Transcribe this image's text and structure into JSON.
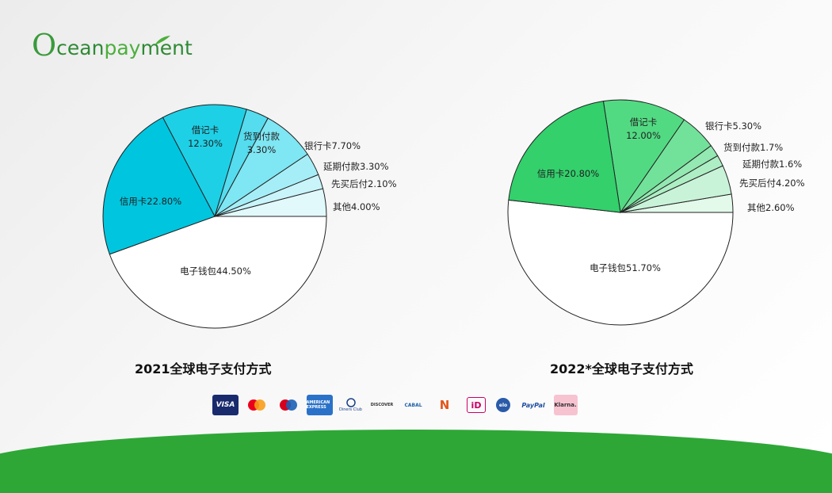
{
  "brand": {
    "logo_o": "O",
    "logo_part1": "cean",
    "logo_part2": "pay",
    "logo_part3": "ment"
  },
  "chart_data": [
    {
      "type": "pie",
      "title": "2021全球电子支付方式",
      "slices": [
        {
          "label": "电子钱包44.50%",
          "value": 44.5,
          "color": "#ffffff"
        },
        {
          "label": "信用卡22.80%",
          "value": 22.8,
          "color": "#00c5df"
        },
        {
          "label": "借记卡",
          "label2": "12.30%",
          "value": 12.3,
          "color": "#1ed0e6"
        },
        {
          "label": "货到付款",
          "label2": "3.30%",
          "value": 3.3,
          "color": "#55dcee"
        },
        {
          "label": "银行卡7.70%",
          "value": 7.7,
          "color": "#7fe6f3"
        },
        {
          "label": "延期付款3.30%",
          "value": 3.3,
          "color": "#a6eef7"
        },
        {
          "label": "先买后付2.10%",
          "value": 2.1,
          "color": "#c8f4fa"
        },
        {
          "label": "其他4.00%",
          "value": 4.0,
          "color": "#e2f9fc"
        }
      ]
    },
    {
      "type": "pie",
      "title": "2022*全球电子支付方式",
      "slices": [
        {
          "label": "电子钱包51.70%",
          "value": 51.7,
          "color": "#ffffff"
        },
        {
          "label": "信用卡20.80%",
          "value": 20.8,
          "color": "#33d06c"
        },
        {
          "label": "借记卡",
          "label2": "12.00%",
          "value": 12.0,
          "color": "#52da83"
        },
        {
          "label": "银行卡5.30%",
          "value": 5.3,
          "color": "#72e29a"
        },
        {
          "label": "货到付款1.7%",
          "value": 1.7,
          "color": "#93e9b1"
        },
        {
          "label": "延期付款1.6%",
          "value": 1.6,
          "color": "#aeeec4"
        },
        {
          "label": "先买后付4.20%",
          "value": 4.2,
          "color": "#c9f3d8"
        },
        {
          "label": "其他2.60%",
          "value": 2.6,
          "color": "#e3f9ea"
        }
      ]
    }
  ],
  "payment_logos": [
    {
      "name": "visa-logo",
      "text": "VISA"
    },
    {
      "name": "mastercard-logo",
      "text": ""
    },
    {
      "name": "maestro-logo",
      "text": ""
    },
    {
      "name": "amex-logo",
      "text": "AMERICAN EXPRESS"
    },
    {
      "name": "diners-club-logo",
      "text": "Diners Club"
    },
    {
      "name": "discover-logo",
      "text": "DISCOVER"
    },
    {
      "name": "cabal-logo",
      "text": "CABAL"
    },
    {
      "name": "naranja-logo",
      "text": "N"
    },
    {
      "name": "ideal-logo",
      "text": "iD"
    },
    {
      "name": "elo-logo",
      "text": "elo"
    },
    {
      "name": "paypal-logo",
      "text": "PayPal"
    },
    {
      "name": "klarna-logo",
      "text": "Klarna."
    }
  ]
}
